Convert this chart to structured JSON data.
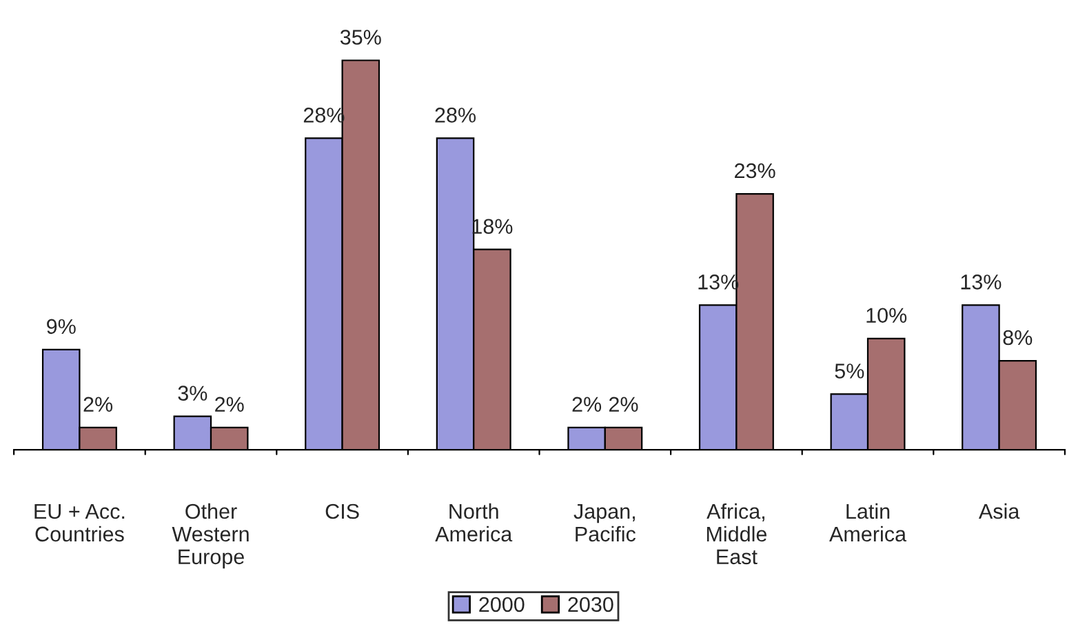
{
  "chart_data": {
    "type": "bar",
    "categories": [
      "EU + Acc.\nCountries",
      "Other\nWestern\nEurope",
      "CIS",
      "North\nAmerica",
      "Japan,\nPacific",
      "Africa,\nMiddle\nEast",
      "Latin\nAmerica",
      "Asia"
    ],
    "series": [
      {
        "name": "2000",
        "color": "#9999dd",
        "values": [
          9,
          3,
          28,
          28,
          2,
          13,
          5,
          13
        ],
        "value_labels": [
          "9%",
          "3%",
          "28%",
          "28%",
          "2%",
          "13%",
          "5%",
          "13%"
        ]
      },
      {
        "name": "2030",
        "color": "#a66f6f",
        "values": [
          2,
          2,
          35,
          18,
          2,
          23,
          10,
          8
        ],
        "value_labels": [
          "2%",
          "2%",
          "35%",
          "18%",
          "2%",
          "23%",
          "10%",
          "8%"
        ]
      }
    ],
    "legend": "bottom",
    "grid": false
  }
}
